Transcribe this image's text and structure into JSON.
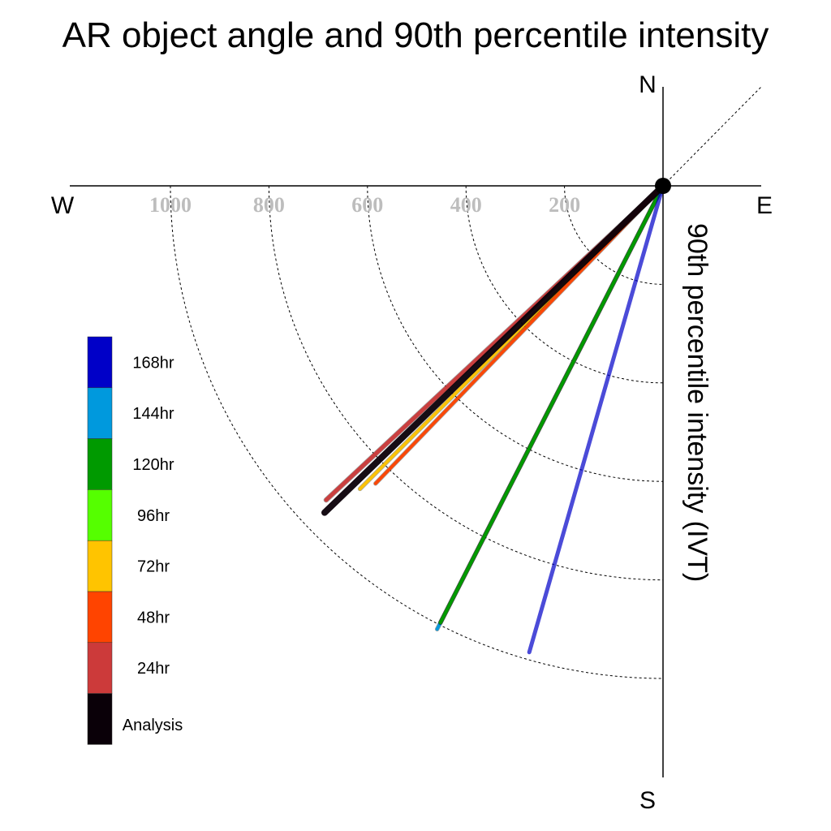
{
  "chart_data": {
    "type": "polar-vector",
    "title": "AR object angle and 90th percentile intensity",
    "ylabel": "90th percentile intensity (IVT)",
    "compass": {
      "north": "N",
      "south": "S",
      "east": "E",
      "west": "W"
    },
    "radial_ticks": [
      200,
      400,
      600,
      800,
      1000
    ],
    "radial_range": [
      0,
      1000
    ],
    "grid": "dotted quarter-circle rings",
    "legend_placement": "left",
    "series": [
      {
        "name": "168hr",
        "color": "#0000c8",
        "angle_deg": 196,
        "intensity": 985
      },
      {
        "name": "144hr",
        "color": "#0099dd",
        "angle_deg": 207,
        "intensity": 1010
      },
      {
        "name": "120hr",
        "color": "#009a00",
        "angle_deg": 207,
        "intensity": 995
      },
      {
        "name": "96hr",
        "color": "#55ff00",
        "angle_deg": 207,
        "intensity": 995
      },
      {
        "name": "72hr",
        "color": "#ffc400",
        "angle_deg": 225,
        "intensity": 870
      },
      {
        "name": "48hr",
        "color": "#ff4400",
        "angle_deg": 224,
        "intensity": 840
      },
      {
        "name": "24hr",
        "color": "#cc3a3a",
        "angle_deg": 227,
        "intensity": 935
      },
      {
        "name": "Analysis",
        "color": "#0a0008",
        "angle_deg": 226,
        "intensity": 955
      }
    ]
  }
}
